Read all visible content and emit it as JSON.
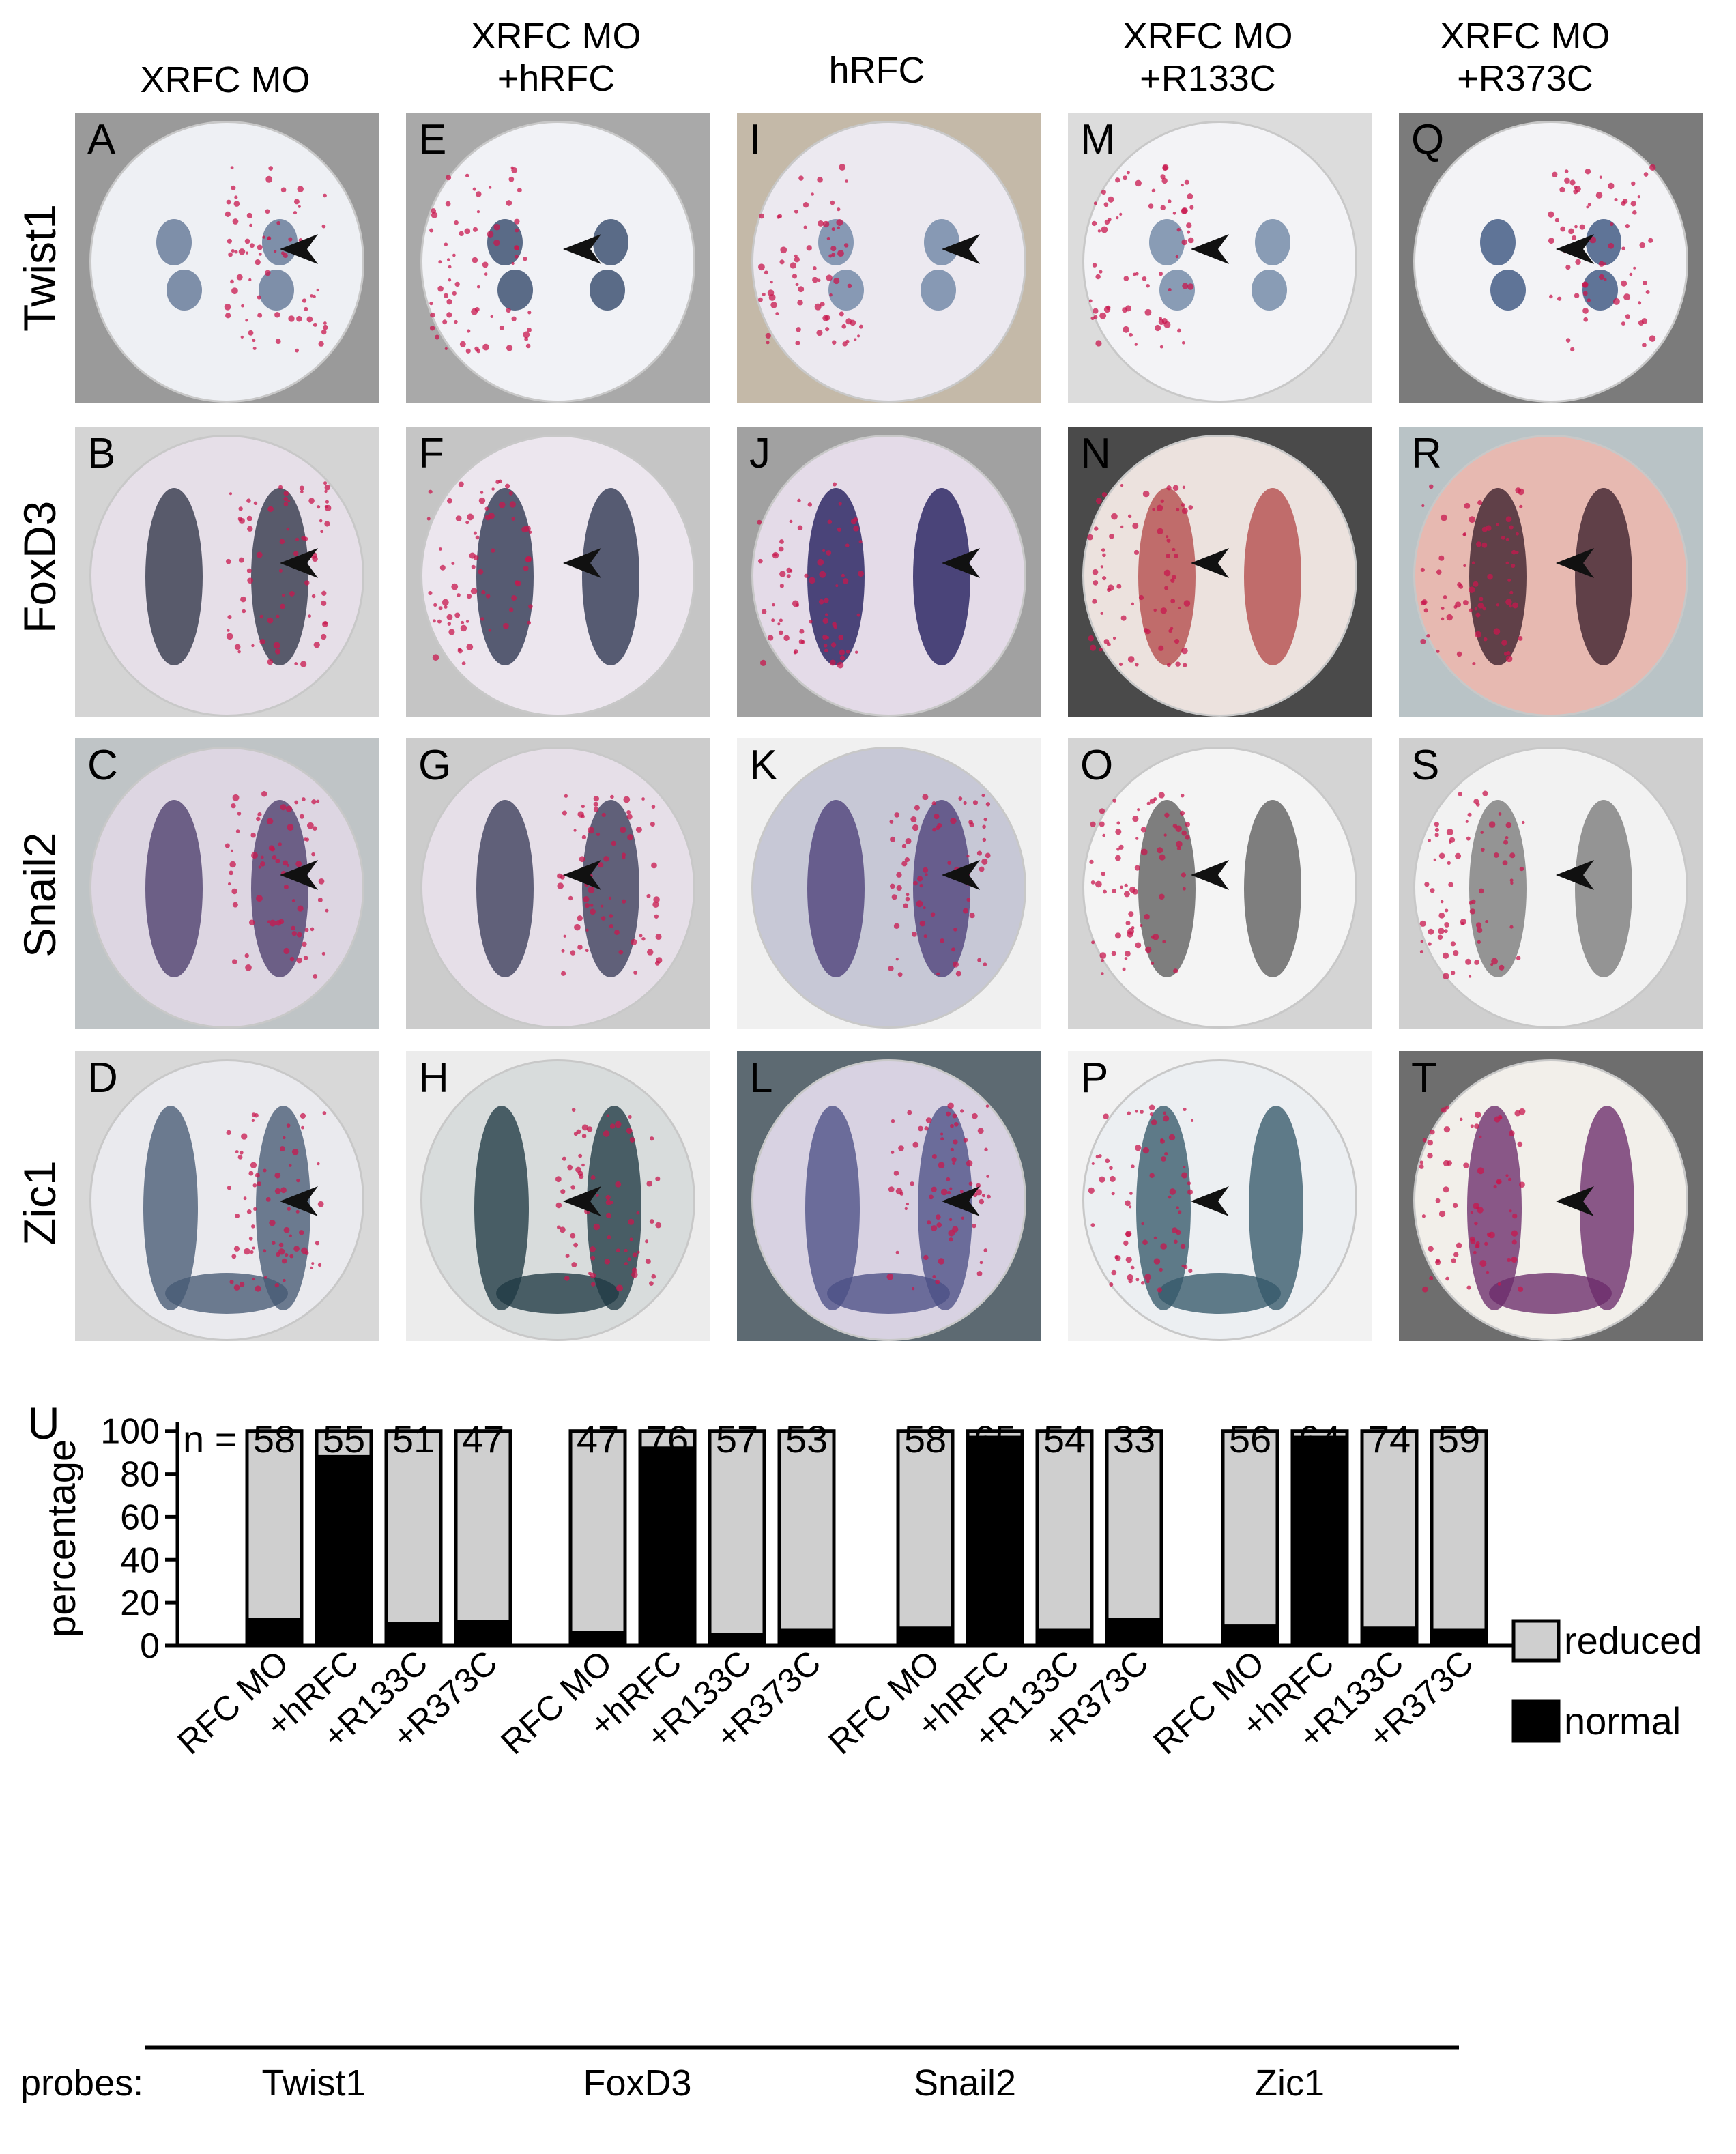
{
  "columns": [
    "XRFC MO",
    "XRFC MO\n+hRFC",
    "hRFC",
    "XRFC MO\n+R133C",
    "XRFC MO\n+R373C"
  ],
  "rows": [
    "Twist1",
    "FoxD3",
    "Snail2",
    "Zic1"
  ],
  "panels": [
    [
      "A",
      "B",
      "C",
      "D"
    ],
    [
      "E",
      "F",
      "G",
      "H"
    ],
    [
      "I",
      "J",
      "K",
      "L"
    ],
    [
      "M",
      "N",
      "O",
      "P"
    ],
    [
      "Q",
      "R",
      "S",
      "T"
    ]
  ],
  "chart_data": {
    "type": "bar",
    "panel_label": "U",
    "n_prefix": "n =",
    "ylabel": "percentage",
    "ylim": [
      0,
      100
    ],
    "yticks": [
      0,
      20,
      40,
      60,
      80,
      100
    ],
    "x_prefix": "probes:",
    "groups": [
      {
        "probe": "Twist1",
        "categories": [
          "RFC MO",
          "+hRFC",
          "+R133C",
          "+R373C"
        ],
        "n": [
          58,
          55,
          51,
          47
        ],
        "normal": [
          12,
          88,
          10,
          11
        ],
        "reduced": [
          88,
          12,
          90,
          89
        ]
      },
      {
        "probe": "FoxD3",
        "categories": [
          "RFC MO",
          "+hRFC",
          "+R133C",
          "+R373C"
        ],
        "n": [
          47,
          76,
          57,
          53
        ],
        "normal": [
          6,
          92,
          5,
          7
        ],
        "reduced": [
          94,
          8,
          95,
          93
        ]
      },
      {
        "probe": "Snail2",
        "categories": [
          "RFC MO",
          "+hRFC",
          "+R133C",
          "+R373C"
        ],
        "n": [
          58,
          65,
          54,
          33
        ],
        "normal": [
          8,
          97,
          7,
          12
        ],
        "reduced": [
          92,
          3,
          93,
          88
        ]
      },
      {
        "probe": "Zic1",
        "categories": [
          "RFC MO",
          "+hRFC",
          "+R133C",
          "+R373C"
        ],
        "n": [
          56,
          64,
          74,
          59
        ],
        "normal": [
          9,
          97,
          8,
          7
        ],
        "reduced": [
          91,
          3,
          92,
          93
        ]
      }
    ],
    "legend": [
      {
        "name": "reduced",
        "color": "#cfcfcf"
      },
      {
        "name": "normal",
        "color": "#000000"
      }
    ],
    "legend_position": "right"
  }
}
